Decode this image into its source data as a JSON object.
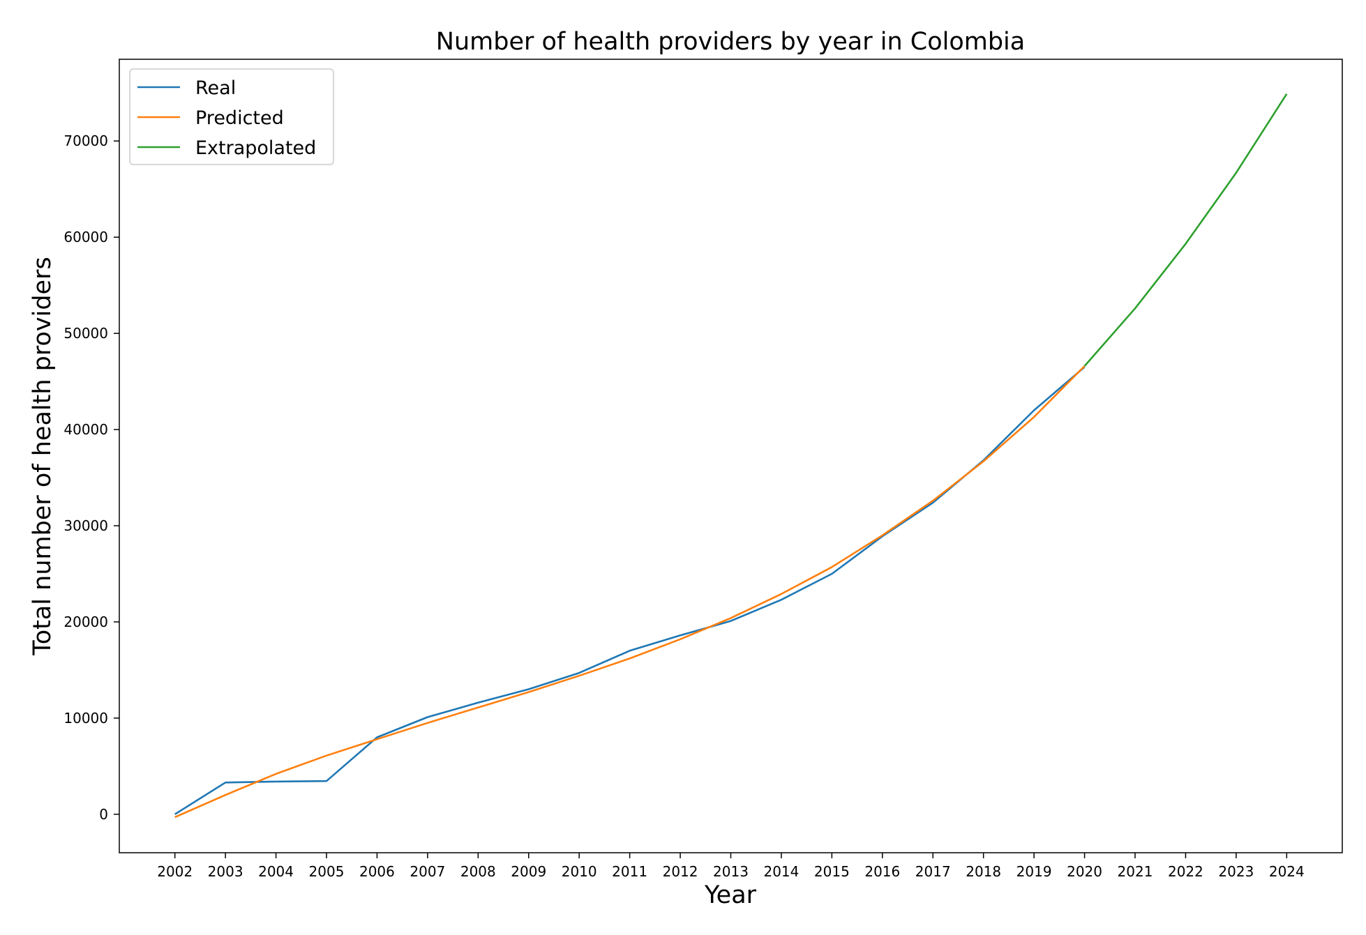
{
  "chart_data": {
    "type": "line",
    "title": "Number of health providers by year in Colombia",
    "xlabel": "Year",
    "ylabel": "Total number of health providers",
    "x_ticks": [
      2002,
      2003,
      2004,
      2005,
      2006,
      2007,
      2008,
      2009,
      2010,
      2011,
      2012,
      2013,
      2014,
      2015,
      2016,
      2017,
      2018,
      2019,
      2020,
      2021,
      2022,
      2023,
      2024
    ],
    "y_ticks": [
      0,
      10000,
      20000,
      30000,
      40000,
      50000,
      60000,
      70000
    ],
    "xlim": [
      2000.9,
      2025.1
    ],
    "ylim": [
      -4000,
      78500
    ],
    "grid": false,
    "legend_position": "top-left",
    "series": [
      {
        "name": "Real",
        "color": "#1f77b4",
        "x": [
          2002,
          2003,
          2004,
          2005,
          2006,
          2007,
          2008,
          2009,
          2010,
          2011,
          2012,
          2013,
          2014,
          2015,
          2016,
          2017,
          2018,
          2019,
          2020
        ],
        "values": [
          0,
          3300,
          3400,
          3450,
          8000,
          10100,
          11600,
          13000,
          14700,
          17000,
          18600,
          20100,
          22300,
          25000,
          28900,
          32400,
          36800,
          42000,
          46500
        ]
      },
      {
        "name": "Predicted",
        "color": "#ff7f0e",
        "x": [
          2002,
          2003,
          2004,
          2005,
          2006,
          2007,
          2008,
          2009,
          2010,
          2011,
          2012,
          2013,
          2014,
          2015,
          2016,
          2017,
          2018,
          2019,
          2020
        ],
        "values": [
          -300,
          2000,
          4200,
          6100,
          7800,
          9500,
          11100,
          12700,
          14400,
          16200,
          18200,
          20400,
          22900,
          25700,
          29000,
          32600,
          36700,
          41300,
          46600
        ]
      },
      {
        "name": "Extrapolated",
        "color": "#2ca02c",
        "x": [
          2020,
          2021,
          2022,
          2023,
          2024
        ],
        "values": [
          46600,
          52600,
          59300,
          66700,
          74900
        ]
      }
    ]
  }
}
